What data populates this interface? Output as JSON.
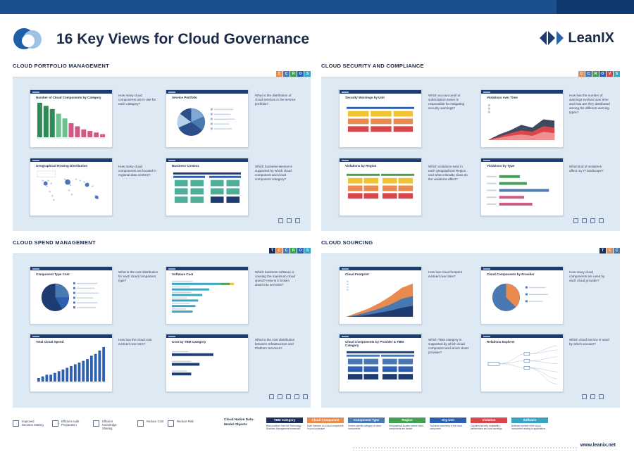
{
  "title": "16 Key Views for Cloud Governance",
  "brand": {
    "name": "LeanIX",
    "website": "www.leanix.net"
  },
  "colors": {
    "navy": "#1f3c72",
    "tbm": "#1c2f5a",
    "component": "#e98a4f",
    "component_type": "#4a78b0",
    "region": "#43a052",
    "org_unit": "#2d5fb0",
    "violation": "#d9474d",
    "software": "#3aa4c3",
    "cloud_service": "#4fae9a"
  },
  "sections": [
    {
      "title": "CLOUD PORTFOLIO MANAGEMENT",
      "tags": [
        "C",
        "C",
        "R",
        "O",
        "S"
      ],
      "cards": [
        {
          "title": "Number of Cloud Components by Category",
          "question": "How many cloud components are in use for each category?",
          "icon": "bar-chart-icon"
        },
        {
          "title": "Service Portfolio",
          "question": "What is the distribution of cloud services in the service portfolio?",
          "icon": "pie-chart-icon"
        },
        {
          "title": "Geographical Hosting Distribution",
          "question": "How many cloud components are located in regional data centers?",
          "icon": "world-map-icon"
        },
        {
          "title": "Business Context",
          "question": "Which business service is supported by which cloud component and cloud component category?",
          "icon": "grid-icon"
        }
      ]
    },
    {
      "title": "CLOUD SECURITY AND COMPLIANCE",
      "tags": [
        "C",
        "C",
        "R",
        "O",
        "V",
        "S"
      ],
      "cards": [
        {
          "title": "Security Warnings by Unit",
          "question": "Which account and/ or subscription owner is responsible for mitigating security warnings?",
          "icon": "grid-icon"
        },
        {
          "title": "Violations over Time",
          "question": "How has the number of warnings evolved over time and how are they distributed among the different warning types?",
          "icon": "area-chart-icon"
        },
        {
          "title": "Violations by Region",
          "question": "Which violations exist in each geographical Region and what criticality class do the violations affect?",
          "icon": "grid-icon"
        },
        {
          "title": "Violations by Type",
          "question": "What kind of violations affect my IT landscape?",
          "icon": "bar-chart-icon"
        }
      ]
    },
    {
      "title": "CLOUD SPEND MANAGEMENT",
      "tags": [
        "T",
        "C",
        "C",
        "R",
        "O",
        "S"
      ],
      "cards": [
        {
          "title": "Component Type Cost",
          "question": "What is the cost distribution for each cloud component type?",
          "icon": "pie-chart-icon"
        },
        {
          "title": "Software Cost",
          "question": "Which business software is causing the maximum cloud spend? How is it broken down into services?",
          "icon": "bar-chart-icon"
        },
        {
          "title": "Total Cloud Spend",
          "question": "How has the cloud cost evolved over time?",
          "icon": "bar-chart-icon"
        },
        {
          "title": "Cost by TBM Category",
          "question": "What is the cost distribution between Infrastructure and Platform Services?",
          "icon": "bar-chart-icon"
        }
      ]
    },
    {
      "title": "CLOUD SOURCING",
      "tags": [
        "T",
        "C",
        "C"
      ],
      "cards": [
        {
          "title": "Cloud Footprint",
          "question": "How has cloud footprint evolved over time?",
          "icon": "area-chart-icon"
        },
        {
          "title": "Cloud Components by Provider",
          "question": "How many cloud components are used by each cloud provider?",
          "icon": "pie-chart-icon"
        },
        {
          "title": "Cloud Components by Provider & TBM Category",
          "question": "Which TBM category is supported by which cloud component and which cloud provider?",
          "icon": "grid-icon"
        },
        {
          "title": "Relations Explorer",
          "question": "Which cloud service is used by which account?",
          "icon": "network-icon"
        }
      ]
    }
  ],
  "benefits": [
    {
      "label": "Improved Decision Making",
      "icon": "decision-icon"
    },
    {
      "label": "Efficient Audit Preparation",
      "icon": "audit-icon"
    },
    {
      "label": "Efficient Knowledge Sharing",
      "icon": "knowledge-icon"
    },
    {
      "label": "Reduce Cost",
      "icon": "cost-icon"
    },
    {
      "label": "Reduce Risk",
      "icon": "risk-icon"
    }
  ],
  "legend": {
    "heading": "Cloud Native Data-Model Objects",
    "objects": [
      {
        "label": "TBM Category",
        "color": "#1c2f5a",
        "description": "Best practices from the Technology Business Management framework"
      },
      {
        "label": "Cloud Component",
        "color": "#e98a4f",
        "description": "Each instance of a cloud component in your landscape"
      },
      {
        "label": "Component Type",
        "color": "#4a78b0",
        "description": "Vendor-specific category of cloud components"
      },
      {
        "label": "Region",
        "color": "#43a052",
        "description": "Geographical location where cloud components are hosted"
      },
      {
        "label": "Org Unit",
        "color": "#2d5fb0",
        "description": "Technical ownership of the cloud component"
      },
      {
        "label": "Violation",
        "color": "#d9474d",
        "description": "Captures security, availability, performance and cost warnings"
      },
      {
        "label": "Software",
        "color": "#3aa4c3",
        "description": "Business context of the cloud component relating to applications"
      }
    ]
  },
  "chart_bars_category": [
    22,
    20,
    18,
    15,
    12,
    9,
    7,
    5,
    4,
    3,
    2
  ],
  "chart_bars_spend": [
    2,
    3,
    4,
    4,
    5,
    6,
    7,
    8,
    9,
    10,
    11,
    12,
    13,
    15,
    16,
    18,
    20
  ]
}
